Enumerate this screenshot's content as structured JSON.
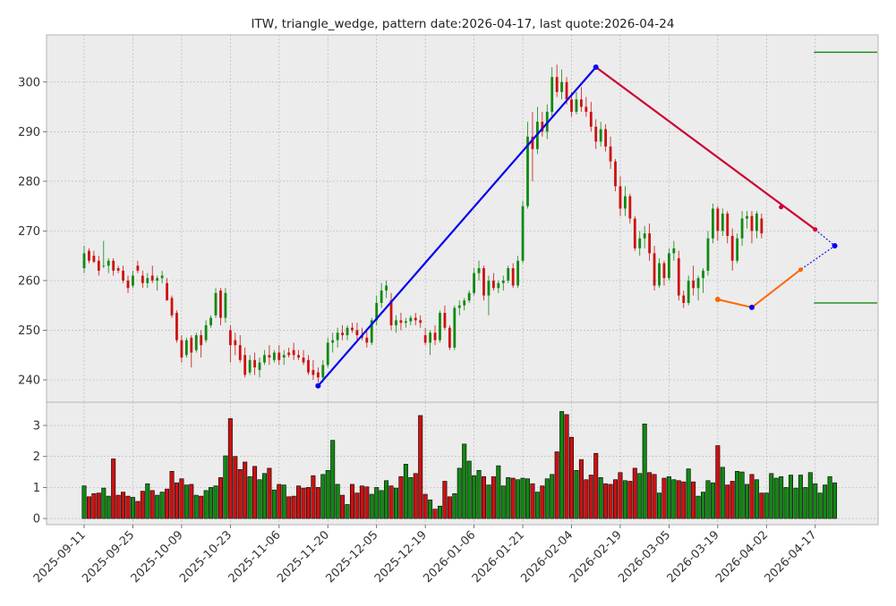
{
  "chart_data": {
    "type": "candlestick",
    "title": "ITW, triangle_wedge, pattern date:2026-04-17, last quote:2026-04-24",
    "colors": {
      "up": "#118811",
      "down": "#cc1111",
      "panel_bg": "#ececec",
      "grid": "#b0b0b0",
      "upper_line": "#cc0033",
      "lower_line": "#ff6600",
      "impulse_line": "#0000ee",
      "projection": "#0000ee",
      "target": "#118811"
    },
    "price_axis": {
      "ylim": [
        235.5,
        309.5
      ],
      "ticks": [
        240,
        250,
        260,
        270,
        280,
        290,
        300
      ]
    },
    "volume_axis": {
      "ylim": [
        -0.2,
        3.75
      ],
      "ticks": [
        0,
        1,
        2,
        3
      ]
    },
    "x_tick_labels": [
      "2025-09-11",
      "2025-09-25",
      "2025-10-09",
      "2025-10-23",
      "2025-11-06",
      "2025-11-20",
      "2025-12-05",
      "2025-12-19",
      "2026-01-06",
      "2026-01-21",
      "2026-02-04",
      "2026-02-19",
      "2026-03-05",
      "2026-03-19",
      "2026-04-02",
      "2026-04-17"
    ],
    "x_tick_index": [
      0,
      10,
      20,
      30,
      40,
      50,
      60,
      70,
      80,
      90,
      100,
      110,
      120,
      130,
      140,
      150
    ],
    "candles": [
      {
        "o": 262.5,
        "h": 267,
        "l": 261.5,
        "c": 265.5
      },
      {
        "o": 266,
        "h": 266.5,
        "l": 263.5,
        "c": 264
      },
      {
        "o": 265,
        "h": 266,
        "l": 263.5,
        "c": 263.8
      },
      {
        "o": 264,
        "h": 265,
        "l": 261,
        "c": 262
      },
      {
        "o": 263,
        "h": 268,
        "l": 262.5,
        "c": 263
      },
      {
        "o": 263,
        "h": 264.5,
        "l": 261.5,
        "c": 264
      },
      {
        "o": 264,
        "h": 264.5,
        "l": 261,
        "c": 262
      },
      {
        "o": 262.5,
        "h": 263,
        "l": 261.5,
        "c": 262
      },
      {
        "o": 262,
        "h": 263,
        "l": 259.5,
        "c": 260
      },
      {
        "o": 260,
        "h": 261,
        "l": 257.5,
        "c": 258.5
      },
      {
        "o": 259,
        "h": 262,
        "l": 258.5,
        "c": 261
      },
      {
        "o": 263,
        "h": 264,
        "l": 261.5,
        "c": 262
      },
      {
        "o": 261,
        "h": 262,
        "l": 258.5,
        "c": 259.5
      },
      {
        "o": 259.5,
        "h": 261.5,
        "l": 258.5,
        "c": 260.5
      },
      {
        "o": 261,
        "h": 263,
        "l": 259.5,
        "c": 260
      },
      {
        "o": 260,
        "h": 261,
        "l": 258,
        "c": 260.5
      },
      {
        "o": 260.5,
        "h": 262,
        "l": 259.5,
        "c": 261
      },
      {
        "o": 259.5,
        "h": 260.5,
        "l": 256.5,
        "c": 256
      },
      {
        "o": 256.5,
        "h": 257,
        "l": 252.5,
        "c": 253
      },
      {
        "o": 253.5,
        "h": 254,
        "l": 247.5,
        "c": 248
      },
      {
        "o": 248,
        "h": 249,
        "l": 243.5,
        "c": 244.5
      },
      {
        "o": 245,
        "h": 248.5,
        "l": 244.5,
        "c": 248
      },
      {
        "o": 248.5,
        "h": 249,
        "l": 242.5,
        "c": 245.5
      },
      {
        "o": 246,
        "h": 249.5,
        "l": 245.5,
        "c": 249
      },
      {
        "o": 249,
        "h": 250,
        "l": 244.5,
        "c": 247
      },
      {
        "o": 248,
        "h": 252,
        "l": 247.5,
        "c": 251
      },
      {
        "o": 251,
        "h": 253,
        "l": 250.5,
        "c": 252.5
      },
      {
        "o": 253,
        "h": 258.5,
        "l": 252.5,
        "c": 257.5
      },
      {
        "o": 258,
        "h": 258.5,
        "l": 251,
        "c": 252.5
      },
      {
        "o": 252.5,
        "h": 258.5,
        "l": 251.5,
        "c": 257.5
      },
      {
        "o": 250,
        "h": 251,
        "l": 243.5,
        "c": 247
      },
      {
        "o": 248,
        "h": 249.5,
        "l": 245,
        "c": 247
      },
      {
        "o": 247,
        "h": 249,
        "l": 243.5,
        "c": 244
      },
      {
        "o": 245,
        "h": 246.5,
        "l": 240.5,
        "c": 241
      },
      {
        "o": 241.5,
        "h": 245,
        "l": 241,
        "c": 244
      },
      {
        "o": 244,
        "h": 245.5,
        "l": 241,
        "c": 242.5
      },
      {
        "o": 242,
        "h": 244.5,
        "l": 240.5,
        "c": 243.5
      },
      {
        "o": 243.5,
        "h": 246,
        "l": 243,
        "c": 245
      },
      {
        "o": 245,
        "h": 247,
        "l": 243,
        "c": 244.5
      },
      {
        "o": 244,
        "h": 246,
        "l": 243.5,
        "c": 245.5
      },
      {
        "o": 245.5,
        "h": 247,
        "l": 243,
        "c": 244
      },
      {
        "o": 244.5,
        "h": 246,
        "l": 243,
        "c": 245
      },
      {
        "o": 245.5,
        "h": 246.5,
        "l": 244.5,
        "c": 245
      },
      {
        "o": 246,
        "h": 247.5,
        "l": 244,
        "c": 245
      },
      {
        "o": 245,
        "h": 246,
        "l": 244,
        "c": 244.5
      },
      {
        "o": 244.5,
        "h": 246,
        "l": 243,
        "c": 243.5
      },
      {
        "o": 244,
        "h": 245,
        "l": 241,
        "c": 241.5
      },
      {
        "o": 242,
        "h": 244,
        "l": 240,
        "c": 241
      },
      {
        "o": 241.5,
        "h": 242.5,
        "l": 239.5,
        "c": 240.5
      },
      {
        "o": 240.5,
        "h": 244,
        "l": 239.5,
        "c": 243
      },
      {
        "o": 243,
        "h": 248.5,
        "l": 242.5,
        "c": 247.5
      },
      {
        "o": 247.5,
        "h": 249.5,
        "l": 245.5,
        "c": 248
      },
      {
        "o": 248,
        "h": 250.5,
        "l": 246.5,
        "c": 249.5
      },
      {
        "o": 249.5,
        "h": 251,
        "l": 248,
        "c": 249
      },
      {
        "o": 249,
        "h": 251,
        "l": 248,
        "c": 250.5
      },
      {
        "o": 250.5,
        "h": 251.5,
        "l": 249.5,
        "c": 250
      },
      {
        "o": 250,
        "h": 251.5,
        "l": 248,
        "c": 249
      },
      {
        "o": 249,
        "h": 250.5,
        "l": 248,
        "c": 248.5
      },
      {
        "o": 248.5,
        "h": 250,
        "l": 246.5,
        "c": 247.5
      },
      {
        "o": 247.5,
        "h": 252.5,
        "l": 247,
        "c": 252
      },
      {
        "o": 252,
        "h": 257,
        "l": 251,
        "c": 255.5
      },
      {
        "o": 255.5,
        "h": 259.5,
        "l": 254.5,
        "c": 258
      },
      {
        "o": 258,
        "h": 260,
        "l": 256.5,
        "c": 259
      },
      {
        "o": 256,
        "h": 257.5,
        "l": 250,
        "c": 251
      },
      {
        "o": 251,
        "h": 253,
        "l": 249.5,
        "c": 252
      },
      {
        "o": 252,
        "h": 253.5,
        "l": 250,
        "c": 251.5
      },
      {
        "o": 251.5,
        "h": 252.5,
        "l": 250.5,
        "c": 251.8
      },
      {
        "o": 251.8,
        "h": 253,
        "l": 251,
        "c": 252.5
      },
      {
        "o": 252.5,
        "h": 253.5,
        "l": 251,
        "c": 252
      },
      {
        "o": 252,
        "h": 253,
        "l": 250.5,
        "c": 251.5
      },
      {
        "o": 249,
        "h": 250.5,
        "l": 247,
        "c": 247.5
      },
      {
        "o": 247.5,
        "h": 250,
        "l": 245,
        "c": 249.5
      },
      {
        "o": 249.5,
        "h": 251,
        "l": 247,
        "c": 248
      },
      {
        "o": 248,
        "h": 254,
        "l": 247.5,
        "c": 253.5
      },
      {
        "o": 253.5,
        "h": 255,
        "l": 250,
        "c": 250.5
      },
      {
        "o": 250.5,
        "h": 251,
        "l": 246,
        "c": 246.5
      },
      {
        "o": 246.5,
        "h": 255,
        "l": 246,
        "c": 254.5
      },
      {
        "o": 254.5,
        "h": 256,
        "l": 253,
        "c": 255
      },
      {
        "o": 255,
        "h": 256.5,
        "l": 254,
        "c": 256
      },
      {
        "o": 256,
        "h": 258,
        "l": 255.5,
        "c": 257.5
      },
      {
        "o": 257.5,
        "h": 262.5,
        "l": 257,
        "c": 261.5
      },
      {
        "o": 261.5,
        "h": 264,
        "l": 260,
        "c": 262.5
      },
      {
        "o": 262.5,
        "h": 263,
        "l": 256,
        "c": 257
      },
      {
        "o": 257,
        "h": 261,
        "l": 253,
        "c": 260
      },
      {
        "o": 260,
        "h": 261.5,
        "l": 258,
        "c": 258.5
      },
      {
        "o": 258.5,
        "h": 260,
        "l": 257.5,
        "c": 259.5
      },
      {
        "o": 259.5,
        "h": 261,
        "l": 258,
        "c": 260
      },
      {
        "o": 260,
        "h": 263,
        "l": 259.5,
        "c": 262.5
      },
      {
        "o": 262.5,
        "h": 263.5,
        "l": 258.5,
        "c": 259
      },
      {
        "o": 259,
        "h": 265,
        "l": 258.5,
        "c": 264
      },
      {
        "o": 264,
        "h": 276,
        "l": 263.5,
        "c": 275
      },
      {
        "o": 275,
        "h": 292,
        "l": 274.5,
        "c": 289
      },
      {
        "o": 289,
        "h": 294,
        "l": 280,
        "c": 286.5
      },
      {
        "o": 286.5,
        "h": 295,
        "l": 285.5,
        "c": 292
      },
      {
        "o": 292,
        "h": 294,
        "l": 289,
        "c": 290
      },
      {
        "o": 290,
        "h": 295.5,
        "l": 288.5,
        "c": 294
      },
      {
        "o": 294,
        "h": 303,
        "l": 293,
        "c": 301
      },
      {
        "o": 301,
        "h": 303.5,
        "l": 297,
        "c": 298
      },
      {
        "o": 298,
        "h": 302.5,
        "l": 296.5,
        "c": 300
      },
      {
        "o": 300,
        "h": 301,
        "l": 295.5,
        "c": 296.5
      },
      {
        "o": 296.5,
        "h": 298,
        "l": 293,
        "c": 294
      },
      {
        "o": 294,
        "h": 298,
        "l": 293.5,
        "c": 296.5
      },
      {
        "o": 296.5,
        "h": 299,
        "l": 294,
        "c": 295
      },
      {
        "o": 295,
        "h": 297,
        "l": 293,
        "c": 294
      },
      {
        "o": 294,
        "h": 296,
        "l": 290,
        "c": 291
      },
      {
        "o": 291,
        "h": 292.5,
        "l": 286.5,
        "c": 288
      },
      {
        "o": 288,
        "h": 292,
        "l": 287,
        "c": 290.5
      },
      {
        "o": 290.5,
        "h": 291.5,
        "l": 286,
        "c": 287
      },
      {
        "o": 287,
        "h": 289,
        "l": 282.5,
        "c": 284
      },
      {
        "o": 284,
        "h": 284.5,
        "l": 278,
        "c": 279
      },
      {
        "o": 279,
        "h": 281,
        "l": 273,
        "c": 274.5
      },
      {
        "o": 274.5,
        "h": 279,
        "l": 273,
        "c": 277
      },
      {
        "o": 277,
        "h": 277.5,
        "l": 271.5,
        "c": 272.5
      },
      {
        "o": 272.5,
        "h": 273,
        "l": 266,
        "c": 266.5
      },
      {
        "o": 266.5,
        "h": 270,
        "l": 265,
        "c": 268.5
      },
      {
        "o": 268.5,
        "h": 271,
        "l": 266.5,
        "c": 269.5
      },
      {
        "o": 269.5,
        "h": 271.5,
        "l": 264,
        "c": 265.5
      },
      {
        "o": 265.5,
        "h": 267,
        "l": 258,
        "c": 259
      },
      {
        "o": 259,
        "h": 264.5,
        "l": 258.5,
        "c": 263.5
      },
      {
        "o": 263.5,
        "h": 264,
        "l": 259,
        "c": 260.5
      },
      {
        "o": 260.5,
        "h": 266.5,
        "l": 260,
        "c": 265.5
      },
      {
        "o": 265.5,
        "h": 268,
        "l": 264,
        "c": 266.5
      },
      {
        "o": 264.5,
        "h": 266,
        "l": 256,
        "c": 257
      },
      {
        "o": 257,
        "h": 258,
        "l": 254.5,
        "c": 255.5
      },
      {
        "o": 255.5,
        "h": 261,
        "l": 255,
        "c": 260
      },
      {
        "o": 260,
        "h": 263,
        "l": 257,
        "c": 258.5
      },
      {
        "o": 258.5,
        "h": 261,
        "l": 256,
        "c": 260.5
      },
      {
        "o": 260.5,
        "h": 262.5,
        "l": 257.5,
        "c": 262
      },
      {
        "o": 262,
        "h": 270,
        "l": 261,
        "c": 268.5
      },
      {
        "o": 268.5,
        "h": 275.5,
        "l": 267.5,
        "c": 274.5
      },
      {
        "o": 274.5,
        "h": 275,
        "l": 268,
        "c": 270
      },
      {
        "o": 270,
        "h": 274.5,
        "l": 269,
        "c": 273.5
      },
      {
        "o": 273.5,
        "h": 274,
        "l": 267.5,
        "c": 269
      },
      {
        "o": 269,
        "h": 270.5,
        "l": 262,
        "c": 264
      },
      {
        "o": 264,
        "h": 269.5,
        "l": 263.5,
        "c": 268.5
      },
      {
        "o": 268.5,
        "h": 274,
        "l": 267,
        "c": 272.5
      },
      {
        "o": 272.5,
        "h": 274,
        "l": 270.5,
        "c": 273
      },
      {
        "o": 273,
        "h": 274,
        "l": 267.5,
        "c": 270
      },
      {
        "o": 270,
        "h": 274,
        "l": 268.5,
        "c": 273.5
      },
      {
        "o": 272.5,
        "h": 273.5,
        "l": 268.5,
        "c": 269.5
      }
    ],
    "volume": [
      1.05,
      0.7,
      0.8,
      0.82,
      0.98,
      0.72,
      1.92,
      0.75,
      0.85,
      0.72,
      0.68,
      0.55,
      0.88,
      1.12,
      0.9,
      0.75,
      0.85,
      0.95,
      1.52,
      1.15,
      1.28,
      1.08,
      1.1,
      0.75,
      0.72,
      0.9,
      1.0,
      1.05,
      1.32,
      2.02,
      3.22,
      2.0,
      1.58,
      1.82,
      1.35,
      1.68,
      1.25,
      1.45,
      1.62,
      0.92,
      1.1,
      1.08,
      0.7,
      0.72,
      1.05,
      0.98,
      1.0,
      1.38,
      1.0,
      1.42,
      1.55,
      2.52,
      1.1,
      0.75,
      0.45,
      1.1,
      0.82,
      1.05,
      1.02,
      0.78,
      1.0,
      0.9,
      1.22,
      1.05,
      0.98,
      1.35,
      1.75,
      1.32,
      1.45,
      3.32,
      0.78,
      0.6,
      0.3,
      0.4,
      1.2,
      0.7,
      0.8,
      1.62,
      2.4,
      1.85,
      1.38,
      1.55,
      1.35,
      1.08,
      1.35,
      1.7,
      1.05,
      1.32,
      1.3,
      1.25,
      1.3,
      1.28,
      1.12,
      0.85,
      1.05,
      1.28,
      1.42,
      2.15,
      3.45,
      3.35,
      2.62,
      1.55,
      1.9,
      1.25,
      1.4,
      2.1,
      1.32,
      1.12,
      1.1,
      1.25,
      1.48,
      1.22,
      1.2,
      1.62,
      1.45,
      3.05,
      1.48,
      1.42,
      0.82,
      1.3,
      1.35,
      1.25,
      1.22,
      1.18,
      1.6,
      1.18,
      0.72,
      0.85,
      1.22,
      1.15,
      2.35,
      1.65,
      1.08,
      1.2,
      1.52,
      1.5,
      1.1,
      1.42,
      1.25,
      0.82,
      0.82,
      1.45,
      1.3,
      1.35,
      1.0,
      1.4,
      0.98,
      1.4,
      1.0,
      1.48,
      1.12,
      0.82,
      1.08,
      1.35,
      1.15
    ],
    "impulse_line": [
      {
        "i": 48,
        "p": 238.8
      },
      {
        "i": 105,
        "p": 303
      }
    ],
    "upper_line": [
      {
        "i": 105,
        "p": 303
      },
      {
        "i": 150,
        "p": 270.3
      }
    ],
    "upper_markers": [
      {
        "i": 143,
        "p": 274.8
      },
      {
        "i": 150,
        "p": 270.3
      }
    ],
    "lower_line": [
      {
        "i": 130,
        "p": 256.2
      },
      {
        "i": 137,
        "p": 254.6
      },
      {
        "i": 147,
        "p": 262.2
      }
    ],
    "projection": [
      {
        "i": 150,
        "p": 270.3
      },
      {
        "i": 154,
        "p": 267
      },
      {
        "i": 147,
        "p": 262.2
      }
    ],
    "target_lines": [
      306,
      255.5
    ]
  }
}
